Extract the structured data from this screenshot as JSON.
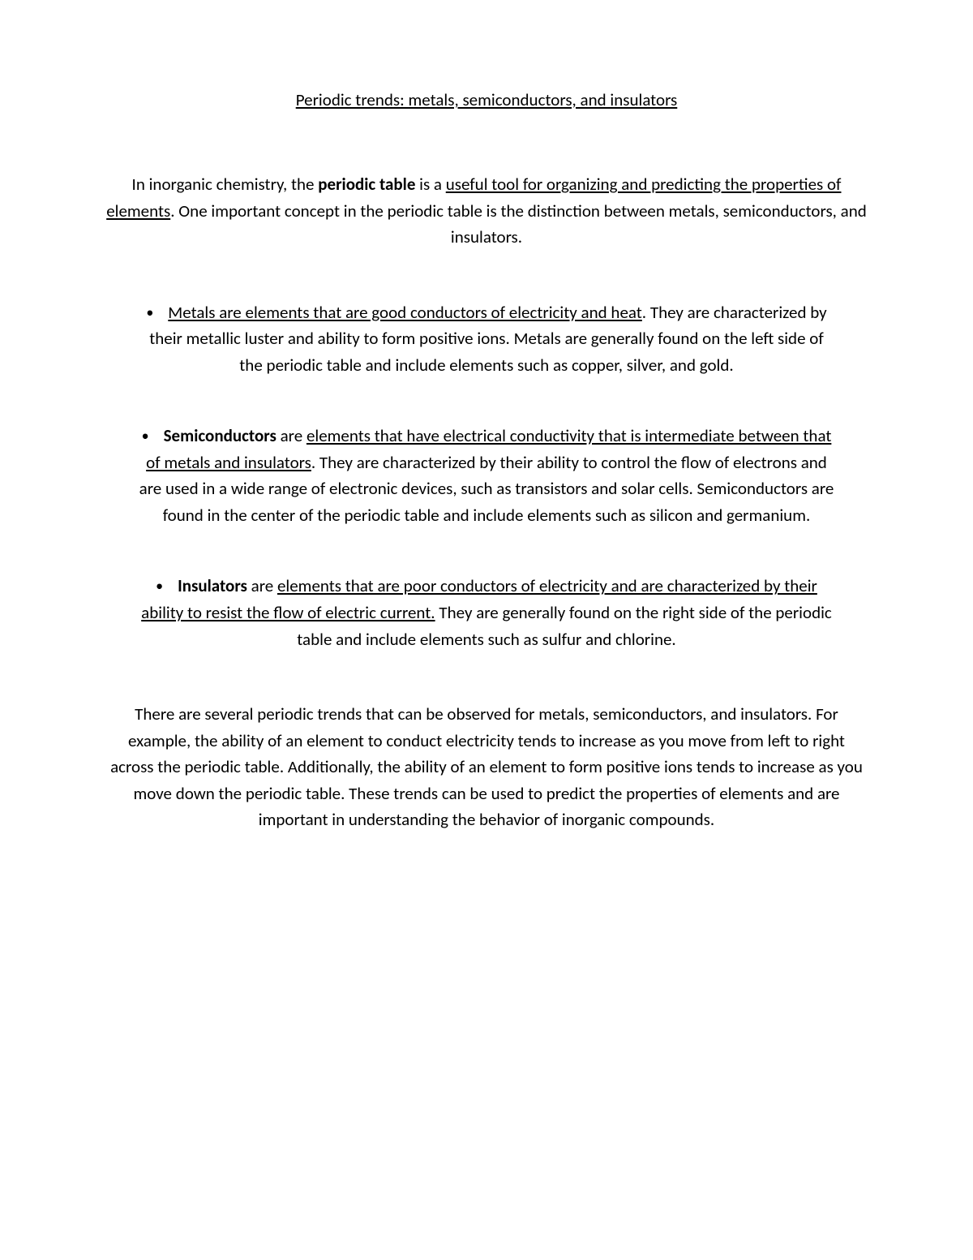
{
  "document": {
    "title": "Periodic trends: metals, semiconductors, and insulators",
    "intro": {
      "part1": "In inorganic chemistry, the ",
      "bold": "periodic table",
      "part2": " is a ",
      "underlined": "useful tool for organizing and predicting the properties of elements",
      "part3": ". One important concept in the periodic table is the distinction between metals, semiconductors, and insulators."
    },
    "bullets": [
      {
        "underlined": "Metals are elements that are good conductors of electricity and heat",
        "rest": ". They are characterized by their metallic luster and ability to form positive ions. Metals are generally found on the left side of the periodic table and include elements such as copper, silver, and gold."
      },
      {
        "bold": "Semiconductors",
        "mid": " are ",
        "underlined": "elements that have electrical conductivity that is intermediate between that of metals and insulators",
        "rest": ". They are characterized by their ability to control the flow of electrons and are used in a wide range of electronic devices, such as transistors and solar cells. Semiconductors are found in the center of the periodic table and include elements such as silicon and germanium."
      },
      {
        "bold": "Insulators",
        "mid": " are ",
        "underlined": "elements that are poor conductors of electricity and are characterized by their ability to resist the flow of electric current.",
        "rest": " They are generally found on the right side of the periodic table and include elements such as sulfur and chlorine."
      }
    ],
    "closing": "There are several periodic trends that can be observed for metals, semiconductors, and insulators. For example, the ability of an element to conduct electricity tends to increase as you move from left to right across the periodic table. Additionally, the ability of an element to form positive ions tends to increase as you move down the periodic table. These trends can be used to predict the properties of elements and are important in understanding the behavior of inorganic compounds.",
    "colors": {
      "background": "#ffffff",
      "text": "#000000"
    },
    "typography": {
      "font_family": "Calibri",
      "body_fontsize": 21,
      "line_height": 1.55
    }
  }
}
